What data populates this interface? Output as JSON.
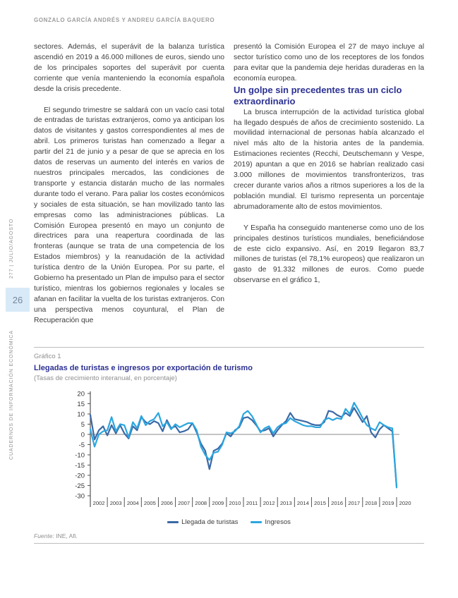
{
  "page": {
    "authors_header": "GONZALO GARCÍA ANDRÉS Y ANDREU GARCÍA BAQUERO",
    "sidebar": {
      "issue": "277 | JULIO/AGOSTO",
      "page_number": "26",
      "journal": "CUADERNOS DE INFORMACIÓN ECONÓMICA"
    },
    "left_column": {
      "p1": "sectores. Además, el superávit de la balanza turística ascendió en 2019 a 46.000 millones de euros, siendo uno de los principales soportes del superávit por cuenta corriente que venía manteniendo la economía española desde la crisis precedente.",
      "p2": "El segundo trimestre se saldará con un vacío casi total de entradas de turistas extranjeros, como ya anticipan los datos de visitantes y gastos correspondientes al mes de abril. Los primeros turistas han comenzado a llegar a partir del 21 de junio y a pesar de que se aprecia en los datos de reservas un aumento del interés en varios de nuestros principales mercados, las condiciones de transporte y estancia distarán mucho de las normales durante todo el verano. Para paliar los costes económicos y sociales de esta situación, se han movilizado tanto las empresas como las administraciones públicas. La Comisión Europea presentó en mayo un conjunto de directrices para una reapertura coordinada de las fronteras (aunque se trata de una competencia de los Estados miembros) y la reanudación de la actividad turística dentro de la Unión Europea. Por su parte, el Gobierno ha presentado un Plan de impulso para el sector turístico, mientras los gobiernos regionales y locales se afanan en facilitar la vuelta de los turistas extranjeros. Con una perspectiva menos coyuntural, el Plan de Recuperación que"
    },
    "right_column": {
      "p1": "presentó la Comisión Europea el 27 de mayo incluye al sector turístico como uno de los receptores de los fondos para evitar que la pandemia deje heridas duraderas en la economía europea.",
      "heading": "Un golpe sin precedentes tras un ciclo extraordinario",
      "p2": "La brusca interrupción de la actividad turística global ha llegado después de años de crecimiento sostenido. La movilidad internacional de personas había alcanzado el nivel más alto de la historia antes de la pandemia. Estimaciones recientes (Recchi, Deutschemann y Vespe, 2019) apuntan a que en 2016 se habrían realizado casi 3.000 millones de movimientos transfronterizos, tras crecer durante varios años a ritmos superiores a los de la población mundial. El turismo representa un porcentaje abrumadoramente alto de estos movimientos.",
      "p3": "Y España ha conseguido mantenerse como uno de los principales destinos turísticos mundiales, beneficiándose de este ciclo expansivo. Así, en 2019 llegaron 83,7 millones de turistas (el 78,1% europeos) que realizaron un gasto de 91.332 millones de euros. Como puede observarse en el gráfico 1,"
    },
    "figure": {
      "label": "Gráfico 1",
      "title": "Llegadas de turistas e ingresos por exportación de turismo",
      "subtitle": "(Tasas de crecimiento interanual, en porcentaje)",
      "fuente_label": "Fuente:",
      "fuente_value": "INE, Afi."
    }
  },
  "chart_data": {
    "type": "line",
    "title": "Llegadas de turistas e ingresos por exportación de turismo",
    "subtitle": "(Tasas de crecimiento interanual, en porcentaje)",
    "frequency": "quarterly",
    "x_years": [
      2002,
      2003,
      2004,
      2005,
      2006,
      2007,
      2008,
      2009,
      2010,
      2011,
      2012,
      2013,
      2014,
      2015,
      2016,
      2017,
      2018,
      2019,
      2020
    ],
    "ylim": [
      -30,
      20
    ],
    "ytick_step": 5,
    "yticks": [
      20,
      15,
      10,
      5,
      0,
      -5,
      -10,
      -15,
      -20,
      -25,
      -30
    ],
    "grid": false,
    "zero_line": true,
    "legend_position": "bottom",
    "axis_color": "#555555",
    "series": [
      {
        "name": "Llegada de turistas",
        "color": "#3b69a5",
        "values": [
          9.5,
          -2.5,
          2.0,
          4.0,
          -0.5,
          4.5,
          0.5,
          4.5,
          0.5,
          -2.0,
          4.0,
          2.0,
          8.5,
          6.0,
          5.0,
          6.5,
          5.5,
          1.5,
          7.0,
          3.0,
          4.0,
          1.0,
          1.5,
          2.5,
          5.5,
          1.0,
          -4.5,
          -8.0,
          -17.0,
          -8.0,
          -7.0,
          -4.5,
          0.5,
          -1.0,
          2.0,
          3.5,
          8.0,
          8.5,
          7.0,
          4.5,
          1.5,
          2.0,
          3.0,
          -1.0,
          2.0,
          4.5,
          6.5,
          10.5,
          7.5,
          7.0,
          6.5,
          6.0,
          5.0,
          4.5,
          4.5,
          6.0,
          11.5,
          11.0,
          9.5,
          8.5,
          10.5,
          9.0,
          13.0,
          9.5,
          6.0,
          9.0,
          1.0,
          -1.5,
          2.5,
          4.5,
          3.0,
          1.5,
          -25.5
        ]
      },
      {
        "name": "Ingresos",
        "color": "#2ba6df",
        "values": [
          2.5,
          -6.0,
          0.0,
          1.5,
          2.0,
          8.5,
          1.5,
          5.0,
          4.5,
          -1.5,
          6.0,
          3.0,
          9.0,
          4.5,
          6.5,
          7.5,
          10.5,
          4.0,
          6.0,
          2.5,
          5.0,
          3.5,
          4.5,
          5.5,
          5.5,
          2.0,
          -6.0,
          -10.0,
          -12.5,
          -9.0,
          -8.5,
          -5.0,
          1.0,
          0.5,
          1.5,
          4.0,
          10.0,
          11.5,
          9.0,
          5.0,
          1.0,
          3.0,
          4.0,
          0.5,
          3.5,
          5.0,
          5.5,
          8.0,
          6.5,
          5.5,
          4.5,
          4.0,
          4.0,
          3.5,
          3.5,
          7.0,
          8.0,
          7.0,
          8.0,
          7.5,
          12.5,
          10.0,
          15.5,
          12.0,
          8.0,
          4.5,
          3.0,
          2.0,
          6.0,
          4.5,
          3.5,
          3.0,
          -26.0
        ]
      }
    ]
  }
}
